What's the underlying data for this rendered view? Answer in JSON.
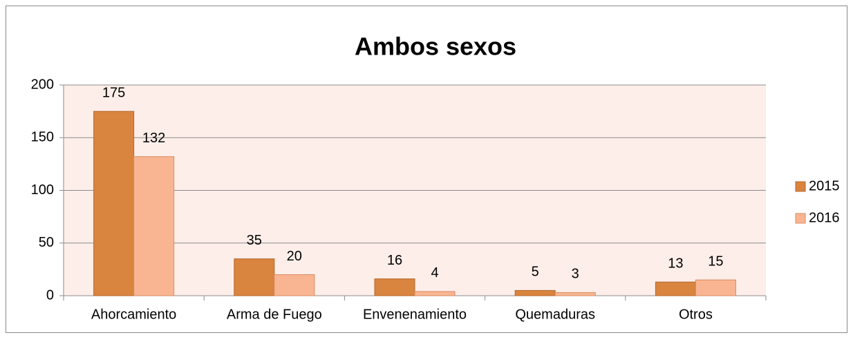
{
  "chart_data": {
    "type": "bar",
    "title": "Ambos sexos",
    "categories": [
      "Ahorcamiento",
      "Arma de Fuego",
      "Envenenamiento",
      "Quemaduras",
      "Otros"
    ],
    "series": [
      {
        "name": "2015",
        "color": "#d9843f",
        "values": [
          175,
          35,
          16,
          5,
          13
        ]
      },
      {
        "name": "2016",
        "color": "#f9b592",
        "values": [
          132,
          20,
          4,
          3,
          15
        ]
      }
    ],
    "ylim": [
      0,
      200
    ],
    "yticks": [
      0,
      50,
      100,
      150,
      200
    ],
    "grid": true,
    "legend": "right"
  }
}
